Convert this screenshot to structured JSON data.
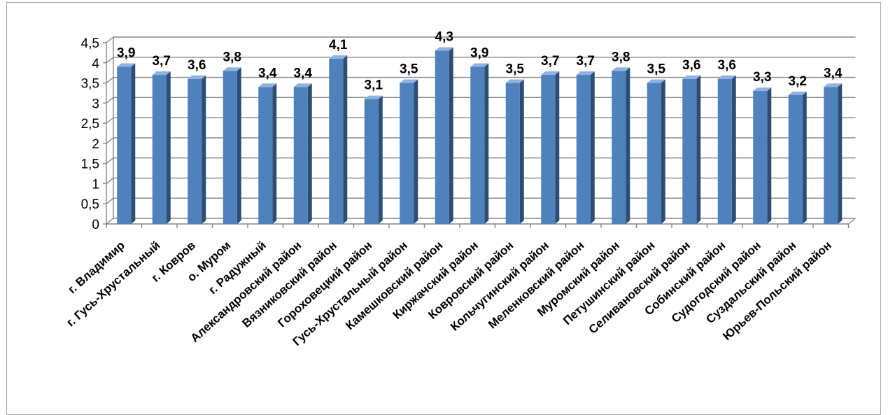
{
  "chart_data": {
    "type": "bar",
    "title": "",
    "xlabel": "",
    "ylabel": "",
    "ylim": [
      0,
      4.5
    ],
    "yticks": [
      "0",
      "0,5",
      "1",
      "1,5",
      "2",
      "2,5",
      "3",
      "3,5",
      "4",
      "4,5"
    ],
    "grid": true,
    "legend": "none",
    "categories": [
      "г. Владимир",
      "г. Гусь-Хрустальный",
      "г. Ковров",
      "о. Муром",
      "г. Радужный",
      "Александровский район",
      "Вязниковский район",
      "Гороховецкий район",
      "Гусь-Хрустальный район",
      "Камешковский район",
      "Киржачский район",
      "Ковровский район",
      "Кольчугинский район",
      "Меленковский район",
      "Муромский район",
      "Петушинский район",
      "Селивановский район",
      "Собинский район",
      "Судогодский район",
      "Суздальский район",
      "Юрьев-Польский район"
    ],
    "values": [
      3.9,
      3.7,
      3.6,
      3.8,
      3.4,
      3.4,
      4.1,
      3.1,
      3.5,
      4.3,
      3.9,
      3.5,
      3.7,
      3.7,
      3.8,
      3.5,
      3.6,
      3.6,
      3.3,
      3.2,
      3.4
    ],
    "data_labels": [
      "3,9",
      "3,7",
      "3,6",
      "3,8",
      "3,4",
      "3,4",
      "4,1",
      "3,1",
      "3,5",
      "4,3",
      "3,9",
      "3,5",
      "3,7",
      "3,7",
      "3,8",
      "3,5",
      "3,6",
      "3,6",
      "3,3",
      "3,2",
      "3,4"
    ],
    "colors": {
      "bar_front": "#4f81bd",
      "bar_side": "#2c4d75",
      "bar_top": "#8fb3e0",
      "grid": "#868686"
    }
  }
}
